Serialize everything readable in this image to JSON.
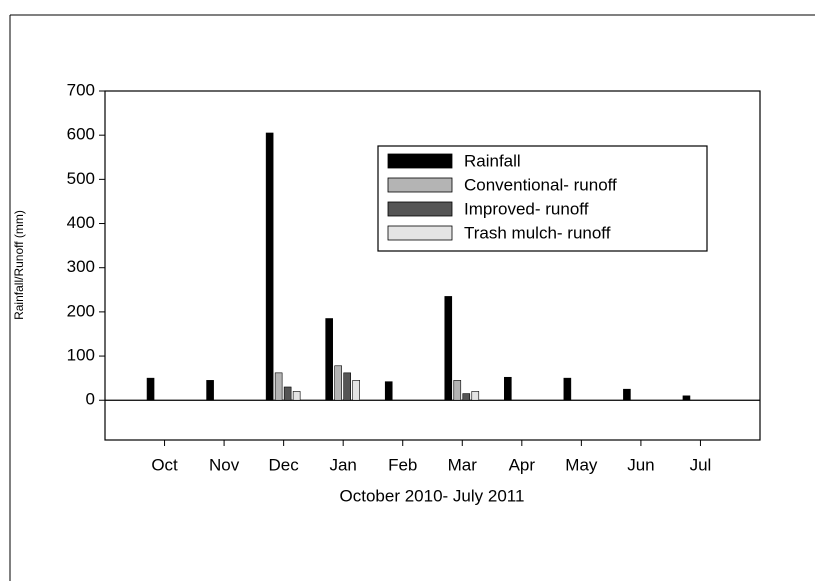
{
  "chart_data": {
    "type": "bar",
    "x_label": "October 2010- July 2011",
    "y_label": "Rainfall/Runoff (mm)",
    "categories": [
      "Oct",
      "Nov",
      "Dec",
      "Jan",
      "Feb",
      "Mar",
      "Apr",
      "May",
      "Jun",
      "Jul"
    ],
    "series": [
      {
        "name": "Rainfall",
        "color": "#000000",
        "values": [
          50,
          45,
          605,
          185,
          42,
          235,
          52,
          50,
          25,
          10
        ]
      },
      {
        "name": "Conventional- runoff",
        "color": "#b4b4b4",
        "values": [
          null,
          null,
          62,
          78,
          null,
          45,
          null,
          null,
          null,
          null
        ]
      },
      {
        "name": "Improved- runoff",
        "color": "#555555",
        "values": [
          null,
          null,
          30,
          62,
          null,
          15,
          null,
          null,
          null,
          null
        ]
      },
      {
        "name": "Trash mulch- runoff",
        "color": "#e4e4e4",
        "values": [
          null,
          null,
          20,
          45,
          null,
          20,
          null,
          null,
          null,
          null
        ]
      }
    ],
    "ylim": [
      -90,
      700
    ],
    "yticks": [
      0,
      100,
      200,
      300,
      400,
      500,
      600,
      700
    ],
    "legend": "upper right"
  }
}
